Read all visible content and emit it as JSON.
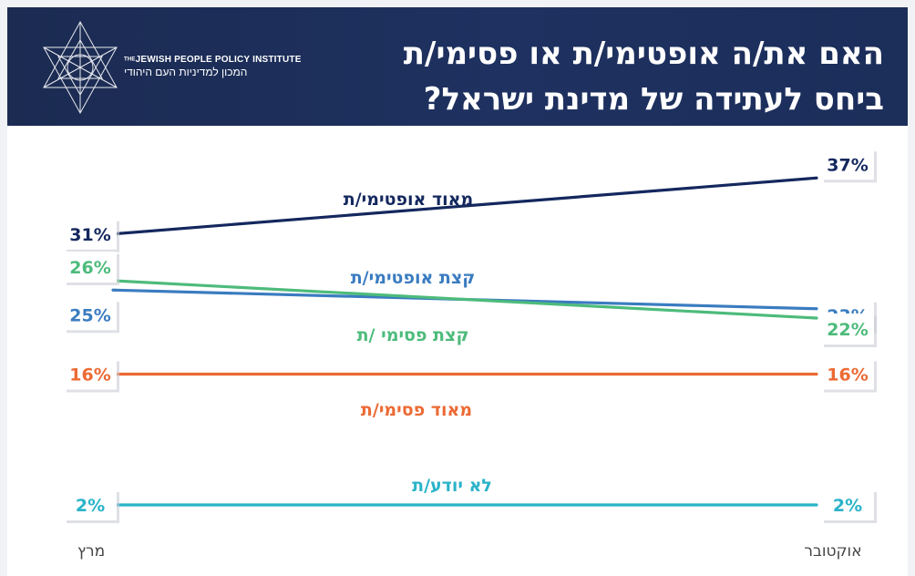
{
  "header": {
    "title_line1": "האם את/ה אופטימי/ת או פסימי/ת",
    "title_line2": "ביחס לעתידה של מדינת ישראל?",
    "logo_en_prefix": "THE",
    "logo_en": "JEWISH PEOPLE POLICY INSTITUTE",
    "logo_he": "המכון למדיניות העם היהודי"
  },
  "colors": {
    "header_bg": "#1c2e5a",
    "very_optimistic": "#14285e",
    "somewhat_optimistic": "#3a7cc0",
    "somewhat_pessimistic": "#4dbb7b",
    "very_pessimistic": "#ec6a34",
    "dont_know": "#2ab3c9"
  },
  "chart_data": {
    "type": "line",
    "title": "האם את/ה אופטימי/ת או פסימי/ת ביחס לעתידה של מדינת ישראל?",
    "x": [
      "מרץ",
      "אוקטובר"
    ],
    "ylim": [
      0,
      40
    ],
    "grid": false,
    "legend": "inline labels",
    "series": [
      {
        "name": "מאוד אופטימי/ת",
        "values": [
          31,
          37
        ],
        "labels": [
          "31%",
          "37%"
        ],
        "color": "#14285e"
      },
      {
        "name": "קצת אופטימי/ת",
        "values": [
          25,
          23
        ],
        "labels": [
          "25%",
          "23%"
        ],
        "color": "#3a7cc0"
      },
      {
        "name": "קצת פסימי /ת",
        "values": [
          26,
          22
        ],
        "labels": [
          "26%",
          "22%"
        ],
        "color": "#4dbb7b"
      },
      {
        "name": "מאוד פסימי/ת",
        "values": [
          16,
          16
        ],
        "labels": [
          "16%",
          "16%"
        ],
        "color": "#ec6a34"
      },
      {
        "name": "לא יודע/ת",
        "values": [
          2,
          2
        ],
        "labels": [
          "2%",
          "2%"
        ],
        "color": "#2ab3c9"
      }
    ]
  }
}
